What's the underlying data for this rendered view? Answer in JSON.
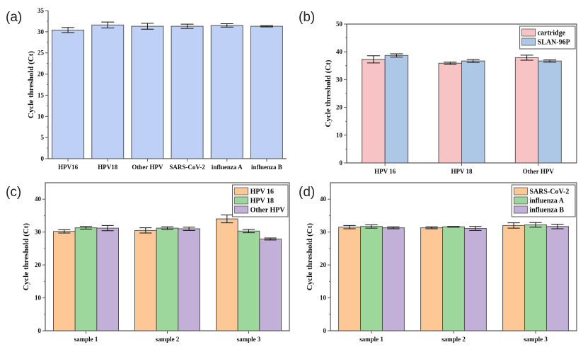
{
  "chart_data": [
    {
      "panel": "(a)",
      "type": "bar",
      "title": "",
      "xlabel": "",
      "ylabel": "Cycle threshold (Ct)",
      "ylim": [
        0,
        35
      ],
      "yticks": [
        0,
        5,
        10,
        15,
        20,
        25,
        30,
        35
      ],
      "grid": false,
      "categories": [
        "HPV16",
        "HPV18",
        "Other HPV",
        "SARS-CoV-2",
        "influenza A",
        "influenza B"
      ],
      "series": [
        {
          "name": "",
          "color": "#bed0f5",
          "values": [
            30.4,
            31.6,
            31.3,
            31.3,
            31.5,
            31.3
          ],
          "errors": [
            0.6,
            0.7,
            0.7,
            0.5,
            0.4,
            0.15
          ]
        }
      ],
      "legend": null
    },
    {
      "panel": "(b)",
      "type": "bar",
      "title": "",
      "xlabel": "",
      "ylabel": "Cycle threshold (Ct)",
      "ylim": [
        0,
        50
      ],
      "yticks": [
        0,
        10,
        20,
        30,
        40,
        50
      ],
      "grid": false,
      "categories": [
        "HPV 16",
        "HPV 18",
        "Other HPV"
      ],
      "series": [
        {
          "name": "cartridge",
          "color": "#f7c3c4",
          "values": [
            37.3,
            35.9,
            37.9
          ],
          "errors": [
            1.3,
            0.4,
            0.9
          ]
        },
        {
          "name": "SLAN-96P",
          "color": "#adc8e6",
          "values": [
            38.7,
            36.7,
            36.7
          ],
          "errors": [
            0.6,
            0.5,
            0.4
          ]
        }
      ],
      "legend": "top-right"
    },
    {
      "panel": "(c)",
      "type": "bar",
      "title": "",
      "xlabel": "",
      "ylabel": "Cycle threshold (Ct)",
      "ylim": [
        0,
        45
      ],
      "yticks": [
        0,
        10,
        20,
        30,
        40
      ],
      "grid": false,
      "categories": [
        "sample 1",
        "sample 2",
        "sample 3"
      ],
      "series": [
        {
          "name": "HPV 16",
          "color": "#fdc896",
          "values": [
            30.2,
            30.5,
            34.0
          ],
          "errors": [
            0.5,
            0.8,
            1.2
          ]
        },
        {
          "name": "HPV 18",
          "color": "#9ed79c",
          "values": [
            31.3,
            31.2,
            30.3
          ],
          "errors": [
            0.4,
            0.4,
            0.5
          ]
        },
        {
          "name": "Other HPV",
          "color": "#c3b0d8",
          "values": [
            31.2,
            31.0,
            27.9
          ],
          "errors": [
            0.8,
            0.5,
            0.3
          ]
        }
      ],
      "legend": "top-right"
    },
    {
      "panel": "(d)",
      "type": "bar",
      "title": "",
      "xlabel": "",
      "ylabel": "Cycle threshold (Ct)",
      "ylim": [
        0,
        45
      ],
      "yticks": [
        0,
        10,
        20,
        30,
        40
      ],
      "grid": false,
      "categories": [
        "sample 1",
        "sample 2",
        "sample 3"
      ],
      "series": [
        {
          "name": "SARS-CoV-2",
          "color": "#fdc896",
          "values": [
            31.5,
            31.3,
            32.0
          ],
          "errors": [
            0.5,
            0.3,
            0.8
          ]
        },
        {
          "name": "influenza A",
          "color": "#9ed79c",
          "values": [
            31.7,
            31.6,
            32.2
          ],
          "errors": [
            0.5,
            0.1,
            0.7
          ]
        },
        {
          "name": "influenza B",
          "color": "#c3b0d8",
          "values": [
            31.3,
            31.1,
            31.7
          ],
          "errors": [
            0.3,
            0.6,
            0.7
          ]
        }
      ],
      "legend": "top-right"
    }
  ]
}
